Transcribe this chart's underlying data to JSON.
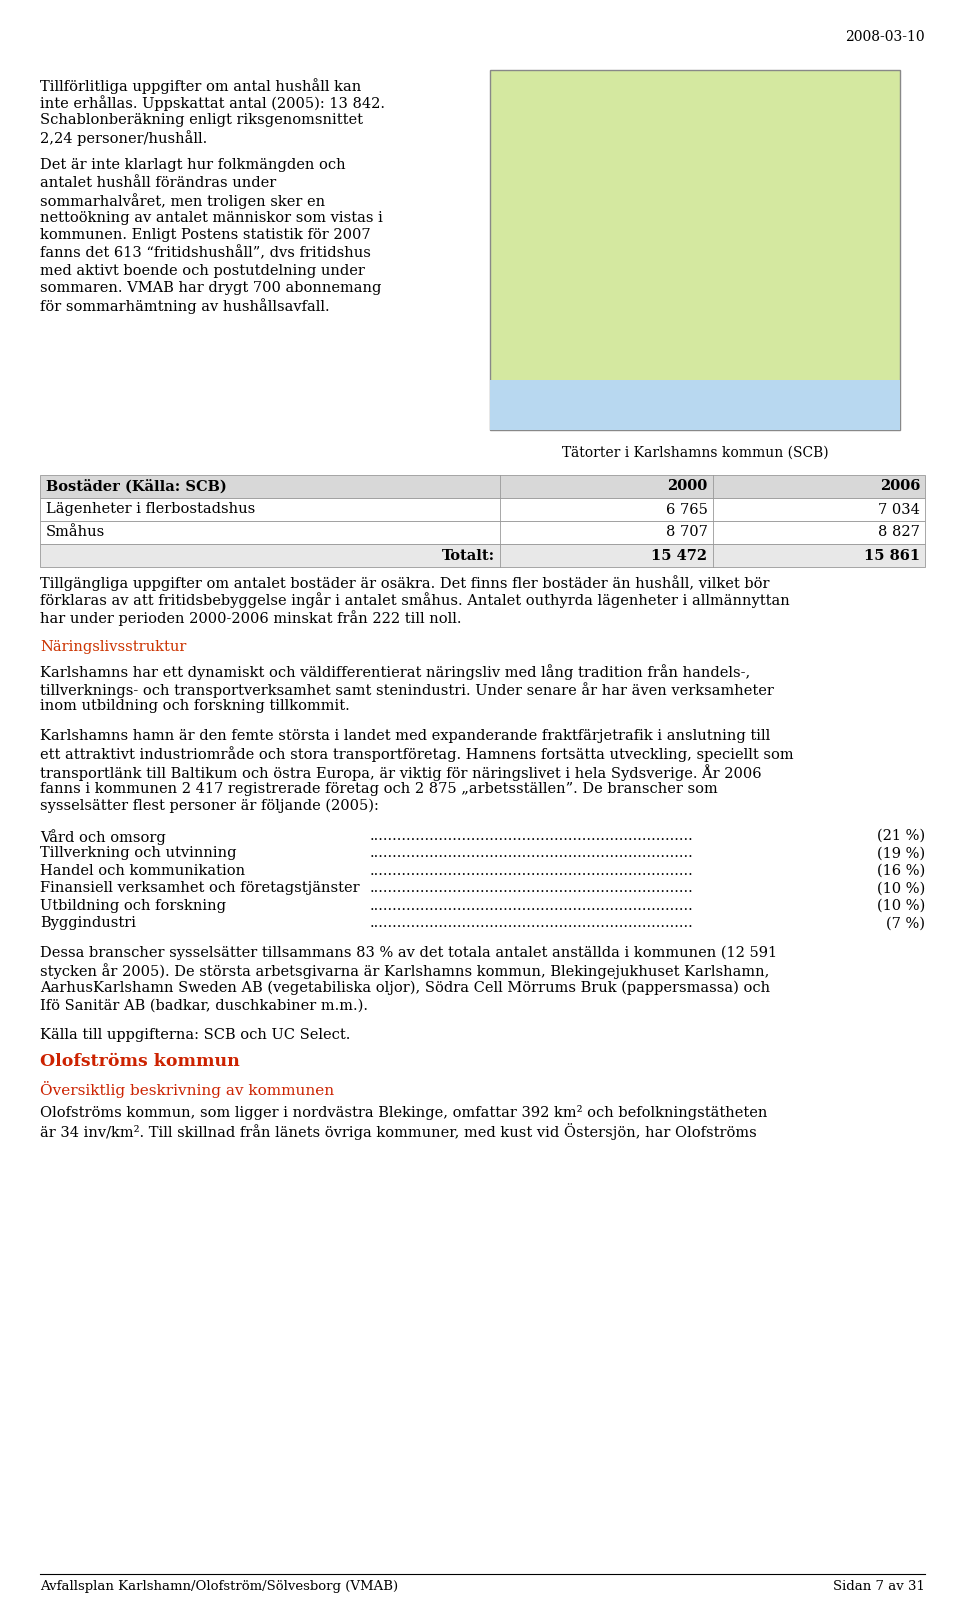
{
  "date_header": "2008-03-10",
  "para1_lines": [
    "Tillförlitliga uppgifter om antal hushåll kan",
    "inte erhållas. Uppskattat antal (2005): 13 842.",
    "Schablonberäkning enligt riksgenomsnittet",
    "2,24 personer/hushåll."
  ],
  "para2_lines": [
    "Det är inte klarlagt hur folkmängden och",
    "antalet hushåll förändras under",
    "sommarhalvåret, men troligen sker en",
    "nettoökning av antalet människor som vistas i",
    "kommunen. Enligt Postens statistik för 2007",
    "fanns det 613 “fritidshushåll”, dvs fritidshus",
    "med aktivt boende och postutdelning under",
    "sommaren. VMAB har drygt 700 abonnemang",
    "för sommarhämtning av hushållsavfall."
  ],
  "map_caption": "Tätorter i Karlshamns kommun (SCB)",
  "table_header": [
    "Bostäder (Källa: SCB)",
    "2000",
    "2006"
  ],
  "table_row1": [
    "Lägenheter i flerbostadshus",
    "6 765",
    "7 034"
  ],
  "table_row2": [
    "Småhus",
    "8 707",
    "8 827"
  ],
  "table_row3_label": "Totalt:",
  "table_row3": [
    "15 472",
    "15 861"
  ],
  "table_note_lines": [
    "Tillgängliga uppgifter om antalet bostäder är osäkra. Det finns fler bostäder än hushåll, vilket bör",
    "förklaras av att fritidsbebyggelse ingår i antalet småhus. Antalet outhyrda lägenheter i allmännyttan",
    "har under perioden 2000-2006 minskat från 222 till noll."
  ],
  "section_header": "Näringslivsstruktur",
  "section_header_color": "#cc3300",
  "para3_lines": [
    "Karlshamns har ett dynamiskt och väldifferentierat näringsliv med lång tradition från handels-,",
    "tillverknings- och transportverksamhet samt stenindustri. Under senare år har även verksamheter",
    "inom utbildning och forskning tillkommit."
  ],
  "para4_lines": [
    "Karlshamns hamn är den femte största i landet med expanderande fraktfärjetrafik i anslutning till",
    "ett attraktivt industriområde och stora transportföretag. Hamnens fortsätta utveckling, speciellt som",
    "transportlänk till Baltikum och östra Europa, är viktig för näringslivet i hela Sydsverige. År 2006",
    "fanns i kommunen 2 417 registrerade företag och 2 875 „arbetsställen”. De branscher som",
    "sysselsätter flest personer är följande (2005):"
  ],
  "list_items": [
    [
      "Vård och omsorg",
      "(21 %)"
    ],
    [
      "Tillverkning och utvinning",
      "(19 %)"
    ],
    [
      "Handel och kommunikation",
      "(16 %)"
    ],
    [
      "Finansiell verksamhet och företagstjänster",
      "(10 %)"
    ],
    [
      "Utbildning och forskning",
      "(10 %)"
    ],
    [
      "Byggindustri",
      "(7 %)"
    ]
  ],
  "para5_lines": [
    "Dessa branscher sysselsätter tillsammans 83 % av det totala antalet anställda i kommunen (12 591",
    "stycken år 2005). De största arbetsgivarna är Karlshamns kommun, Blekingejukhuset Karlshamn,",
    "AarhusKarlshamn Sweden AB (vegetabiliska oljor), Södra Cell Mörrums Bruk (pappersmassa) och",
    "Ifö Sanitär AB (badkar, duschkabiner m.m.)."
  ],
  "para6": "Källa till uppgifterna: SCB och UC Select.",
  "section_header2": "Olofströms kommun",
  "section_header2_color": "#cc2200",
  "sub_header2": "Översiktlig beskrivning av kommunen",
  "sub_header2_color": "#cc2200",
  "para7_lines": [
    "Olofströms kommun, som ligger i nordvästra Blekinge, omfattar 392 km² och befolkningstätheten",
    "är 34 inv/km². Till skillnad från länets övriga kommuner, med kust vid Östersjön, har Olofströms"
  ],
  "footer_left": "Avfallsplan Karlshamn/Olofström/Sölvesborg (VMAB)",
  "footer_right": "Sidan 7 av 31",
  "bg_color": "#ffffff",
  "text_color": "#000000"
}
